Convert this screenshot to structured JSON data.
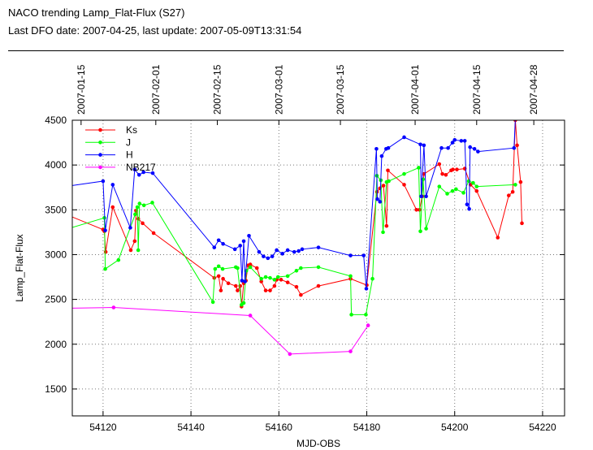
{
  "header": {
    "title": "NACO trending Lamp_Flat-Flux (S27)",
    "subtitle": "Last DFO date: 2007-04-25, last update: 2007-05-09T13:31:54"
  },
  "chart_data": {
    "type": "line",
    "xlabel": "MJD-OBS",
    "ylabel": "Lamp_Flat-Flux",
    "xlim": [
      54113,
      54225
    ],
    "ylim": [
      1200,
      4500
    ],
    "grid": true,
    "legend_position": "top-left",
    "x_ticks": [
      54120,
      54140,
      54160,
      54180,
      54200,
      54220
    ],
    "y_ticks": [
      1500,
      2000,
      2500,
      3000,
      3500,
      4000,
      4500
    ],
    "top_axis": {
      "ticks": [
        {
          "x": 54115,
          "label": "2007-01-15"
        },
        {
          "x": 54132,
          "label": "2007-02-01"
        },
        {
          "x": 54146,
          "label": "2007-02-15"
        },
        {
          "x": 54160,
          "label": "2007-03-01"
        },
        {
          "x": 54174,
          "label": "2007-03-15"
        },
        {
          "x": 54191,
          "label": "2007-04-01"
        },
        {
          "x": 54205,
          "label": "2007-04-15"
        },
        {
          "x": 54218,
          "label": "2007-04-28"
        }
      ]
    },
    "series": [
      {
        "name": "Ks",
        "color": "#ff0000",
        "points": [
          [
            54110,
            3480
          ],
          [
            54120,
            3280
          ],
          [
            54120.3,
            3260
          ],
          [
            54120.6,
            3030
          ],
          [
            54122.2,
            3530
          ],
          [
            54126.3,
            3050
          ],
          [
            54127.2,
            3150
          ],
          [
            54127.5,
            3490
          ],
          [
            54128,
            3400
          ],
          [
            54129,
            3350
          ],
          [
            54131.5,
            3240
          ],
          [
            54145.3,
            2740
          ],
          [
            54146.3,
            2760
          ],
          [
            54146.8,
            2600
          ],
          [
            54147.3,
            2730
          ],
          [
            54148.5,
            2680
          ],
          [
            54150.2,
            2650
          ],
          [
            54150.6,
            2600
          ],
          [
            54151.2,
            2650
          ],
          [
            54151.5,
            2420
          ],
          [
            54152,
            2680
          ],
          [
            54152.5,
            2710
          ],
          [
            54153,
            2880
          ],
          [
            54153.5,
            2890
          ],
          [
            54155,
            2850
          ],
          [
            54156,
            2700
          ],
          [
            54157,
            2600
          ],
          [
            54158,
            2600
          ],
          [
            54159,
            2650
          ],
          [
            54159.5,
            2720
          ],
          [
            54160.5,
            2720
          ],
          [
            54162,
            2690
          ],
          [
            54164,
            2640
          ],
          [
            54165,
            2550
          ],
          [
            54169,
            2650
          ],
          [
            54176.3,
            2730
          ],
          [
            54180,
            2660
          ],
          [
            54182.3,
            3700
          ],
          [
            54183,
            3740
          ],
          [
            54183.8,
            3770
          ],
          [
            54184.5,
            3320
          ],
          [
            54184.8,
            3940
          ],
          [
            54188.5,
            3780
          ],
          [
            54191.3,
            3500
          ],
          [
            54192,
            3500
          ],
          [
            54192.6,
            3650
          ],
          [
            54193,
            3900
          ],
          [
            54196.5,
            4010
          ],
          [
            54197.2,
            3900
          ],
          [
            54198,
            3890
          ],
          [
            54199.2,
            3940
          ],
          [
            54199.6,
            3950
          ],
          [
            54200.5,
            3950
          ],
          [
            54202.3,
            3960
          ],
          [
            54203.6,
            3780
          ],
          [
            54205,
            3710
          ],
          [
            54209.8,
            3190
          ],
          [
            54212.3,
            3660
          ],
          [
            54213.2,
            3700
          ],
          [
            54213.8,
            4500
          ],
          [
            54214.2,
            4220
          ],
          [
            54215,
            3810
          ],
          [
            54215.3,
            3350
          ]
        ]
      },
      {
        "name": "J",
        "color": "#00ff00",
        "points": [
          [
            54110,
            3260
          ],
          [
            54120.3,
            3410
          ],
          [
            54120.5,
            2840
          ],
          [
            54123.5,
            2940
          ],
          [
            54127.3,
            3450
          ],
          [
            54127.8,
            3530
          ],
          [
            54128,
            3050
          ],
          [
            54128.3,
            3570
          ],
          [
            54129.3,
            3550
          ],
          [
            54131.2,
            3580
          ],
          [
            54145,
            2470
          ],
          [
            54145.5,
            2840
          ],
          [
            54146.3,
            2870
          ],
          [
            54147.2,
            2840
          ],
          [
            54150.2,
            2860
          ],
          [
            54150.6,
            2850
          ],
          [
            54151.5,
            2440
          ],
          [
            54152,
            2460
          ],
          [
            54152.6,
            2820
          ],
          [
            54153.5,
            2860
          ],
          [
            54156,
            2730
          ],
          [
            54157,
            2750
          ],
          [
            54158,
            2740
          ],
          [
            54159,
            2720
          ],
          [
            54159.8,
            2750
          ],
          [
            54162,
            2760
          ],
          [
            54164,
            2820
          ],
          [
            54165,
            2850
          ],
          [
            54169,
            2860
          ],
          [
            54176.3,
            2760
          ],
          [
            54176.5,
            2330
          ],
          [
            54179.8,
            2330
          ],
          [
            54181.3,
            2730
          ],
          [
            54182.3,
            3880
          ],
          [
            54183.2,
            3830
          ],
          [
            54183.7,
            3250
          ],
          [
            54184.5,
            3810
          ],
          [
            54185,
            3820
          ],
          [
            54188.5,
            3900
          ],
          [
            54191.8,
            3970
          ],
          [
            54192.2,
            3260
          ],
          [
            54192.8,
            3840
          ],
          [
            54193.5,
            3290
          ],
          [
            54196.5,
            3760
          ],
          [
            54198.3,
            3680
          ],
          [
            54199.5,
            3710
          ],
          [
            54200.3,
            3730
          ],
          [
            54202,
            3690
          ],
          [
            54203.2,
            3820
          ],
          [
            54204.2,
            3800
          ],
          [
            54205,
            3760
          ],
          [
            54213.8,
            3780
          ]
        ]
      },
      {
        "name": "H",
        "color": "#0000ff",
        "points": [
          [
            54110,
            3750
          ],
          [
            54120,
            3820
          ],
          [
            54120.5,
            3270
          ],
          [
            54122.2,
            3780
          ],
          [
            54126.2,
            3300
          ],
          [
            54127.2,
            3950
          ],
          [
            54128.2,
            3890
          ],
          [
            54129.2,
            3920
          ],
          [
            54131.3,
            3910
          ],
          [
            54145.3,
            3080
          ],
          [
            54146.3,
            3160
          ],
          [
            54147.3,
            3120
          ],
          [
            54150,
            3060
          ],
          [
            54151.2,
            3100
          ],
          [
            54151.6,
            2710
          ],
          [
            54152,
            3150
          ],
          [
            54152.3,
            2700
          ],
          [
            54153.2,
            3210
          ],
          [
            54155.5,
            3030
          ],
          [
            54156.5,
            2980
          ],
          [
            54157.5,
            2960
          ],
          [
            54158.5,
            2980
          ],
          [
            54159.5,
            3050
          ],
          [
            54160.8,
            3010
          ],
          [
            54162,
            3050
          ],
          [
            54163.5,
            3030
          ],
          [
            54164.5,
            3040
          ],
          [
            54165.3,
            3060
          ],
          [
            54169,
            3080
          ],
          [
            54176.3,
            2990
          ],
          [
            54179.3,
            2990
          ],
          [
            54179.9,
            2620
          ],
          [
            54182.2,
            4180
          ],
          [
            54182.4,
            3620
          ],
          [
            54183,
            3590
          ],
          [
            54183.4,
            4100
          ],
          [
            54184.4,
            4180
          ],
          [
            54184.9,
            4190
          ],
          [
            54188.5,
            4310
          ],
          [
            54192.2,
            4230
          ],
          [
            54192.4,
            3650
          ],
          [
            54193,
            4220
          ],
          [
            54193.5,
            3650
          ],
          [
            54197,
            4190
          ],
          [
            54198.5,
            4190
          ],
          [
            54199.5,
            4250
          ],
          [
            54200,
            4280
          ],
          [
            54201.5,
            4270
          ],
          [
            54202.3,
            4270
          ],
          [
            54202.8,
            3560
          ],
          [
            54203.3,
            3510
          ],
          [
            54203.5,
            4200
          ],
          [
            54204.5,
            4180
          ],
          [
            54205.3,
            4150
          ],
          [
            54213.5,
            4190
          ],
          [
            54213.8,
            4520
          ]
        ]
      },
      {
        "name": "NB217",
        "color": "#ff00ff",
        "points": [
          [
            54110,
            2400
          ],
          [
            54122.4,
            2410
          ],
          [
            54153.5,
            2320
          ],
          [
            54162.5,
            1890
          ],
          [
            54176.3,
            1920
          ],
          [
            54180.3,
            2210
          ]
        ]
      }
    ]
  }
}
